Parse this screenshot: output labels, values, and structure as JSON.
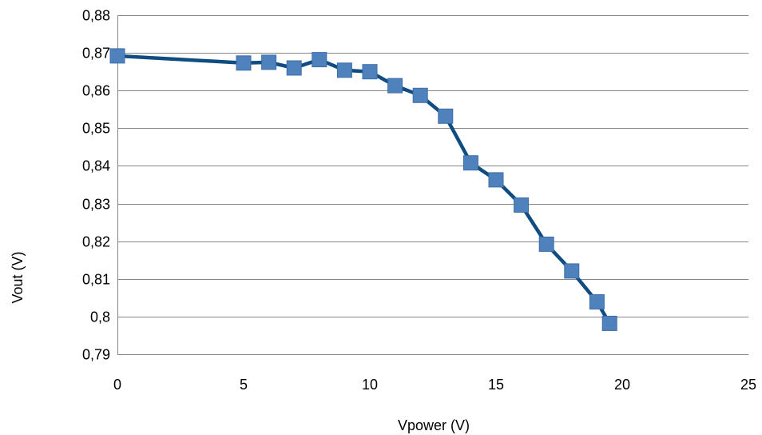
{
  "chart_data": {
    "type": "line",
    "title": "",
    "xlabel": "Vpower (V)",
    "ylabel": "Vout (V)",
    "xlim": [
      0,
      25
    ],
    "ylim": [
      0.79,
      0.88
    ],
    "x_ticks": [
      0,
      5,
      10,
      15,
      20,
      25
    ],
    "x_tick_labels": [
      "0",
      "5",
      "10",
      "15",
      "20",
      "25"
    ],
    "y_ticks": [
      0.79,
      0.8,
      0.81,
      0.82,
      0.83,
      0.84,
      0.85,
      0.86,
      0.87,
      0.88
    ],
    "y_tick_labels": [
      "0,79",
      "0,8",
      "0,81",
      "0,82",
      "0,83",
      "0,84",
      "0,85",
      "0,86",
      "0,87",
      "0,88"
    ],
    "grid": "horizontal",
    "legend": "none",
    "series": [
      {
        "line_color": "#0f4c81",
        "marker_color": "#4f81bd",
        "marker": "square",
        "x": [
          0,
          5,
          6,
          7,
          8,
          9,
          10,
          11,
          12,
          13,
          14,
          15,
          16,
          17,
          18,
          19,
          19.5
        ],
        "y": [
          0.8692,
          0.8673,
          0.8675,
          0.866,
          0.8682,
          0.8654,
          0.865,
          0.8613,
          0.8587,
          0.8532,
          0.8408,
          0.8363,
          0.8296,
          0.8192,
          0.8121,
          0.8039,
          0.7982
        ]
      }
    ]
  }
}
